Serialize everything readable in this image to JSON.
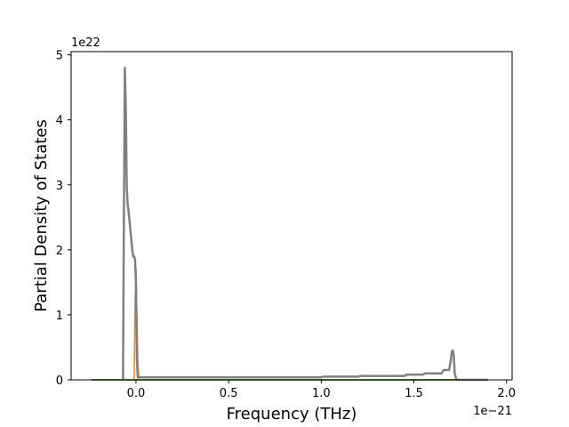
{
  "chart_data": {
    "type": "line",
    "title": "",
    "xlabel": "Frequency (THz)",
    "ylabel": "Partial Density of States",
    "x_multiplier": "1e−21",
    "y_multiplier": "1e22",
    "xlim": [
      -0.35,
      2.03
    ],
    "ylim": [
      0,
      5.05
    ],
    "xticks": [
      0.0,
      0.5,
      1.0,
      1.5,
      2.0
    ],
    "xtick_labels": [
      "0.0",
      "0.5",
      "1.0",
      "1.5",
      "2.0"
    ],
    "yticks": [
      0,
      1,
      2,
      3,
      4,
      5
    ],
    "ytick_labels": [
      "0",
      "1",
      "2",
      "3",
      "4",
      "5"
    ],
    "grid": false,
    "legend": "none",
    "series": [
      {
        "color": "#1f77b4",
        "width": 1.5,
        "x": [
          -0.24,
          1.9
        ],
        "y": [
          0,
          0
        ]
      },
      {
        "color": "#ff7f0e",
        "width": 1.5,
        "x": [
          -0.24,
          -0.01,
          -0.005,
          0.0,
          0.005,
          0.01,
          0.015,
          1.9
        ],
        "y": [
          0,
          0,
          1.2,
          1.7,
          1.0,
          0.3,
          0,
          0
        ]
      },
      {
        "color": "#2ca02c",
        "width": 1.5,
        "x": [
          -0.24,
          1.9
        ],
        "y": [
          0,
          0
        ]
      },
      {
        "color": "#808080",
        "width": 2.5,
        "x": [
          -0.07,
          -0.065,
          -0.06,
          -0.055,
          -0.05,
          -0.045,
          -0.04,
          -0.035,
          -0.03,
          -0.025,
          -0.02,
          -0.015,
          -0.01,
          -0.005,
          0.0,
          0.005,
          0.01,
          0.02,
          0.5,
          1.0,
          1.01,
          1.2,
          1.21,
          1.45,
          1.46,
          1.55,
          1.56,
          1.65,
          1.66,
          1.69,
          1.7,
          1.705,
          1.71,
          1.715,
          1.72,
          1.73,
          1.75,
          1.85,
          1.9
        ],
        "y": [
          0,
          2.6,
          4.8,
          4.2,
          3.0,
          2.7,
          2.6,
          2.45,
          2.3,
          2.15,
          2.0,
          1.9,
          1.9,
          1.85,
          1.5,
          0.3,
          0.04,
          0.04,
          0.04,
          0.04,
          0.05,
          0.05,
          0.06,
          0.06,
          0.08,
          0.08,
          0.1,
          0.1,
          0.15,
          0.15,
          0.32,
          0.44,
          0.45,
          0.38,
          0.1,
          0.0,
          0.0,
          0.0,
          0.0
        ]
      }
    ]
  }
}
